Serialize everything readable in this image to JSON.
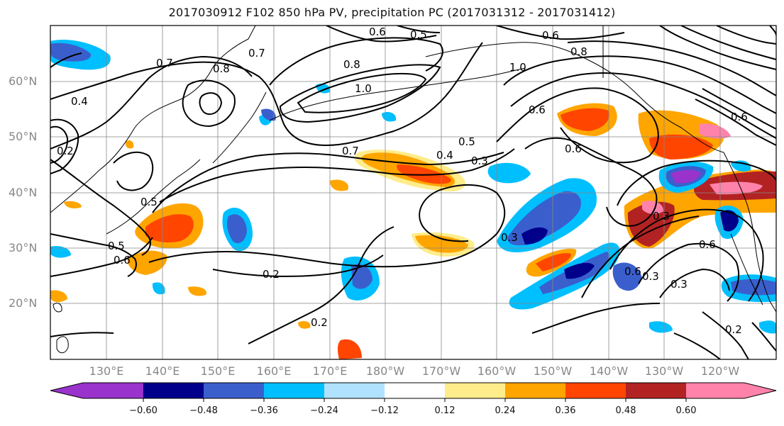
{
  "title": "2017030912 F102 850 hPa PV, precipitation PC (2017031312 - 2017031412)",
  "lat_labels": [
    "60°N",
    "50°N",
    "40°N",
    "30°N",
    "20°N"
  ],
  "lon_labels": [
    "130°E",
    "140°E",
    "150°E",
    "160°E",
    "170°E",
    "180°W",
    "170°W",
    "160°W",
    "150°W",
    "140°W",
    "130°W",
    "120°W"
  ],
  "contour_labels": [
    "0.6",
    "0.5",
    "0.6",
    "0.7",
    "0.8",
    "0.7",
    "0.8",
    "1.0",
    "1.0",
    "0.8",
    "0.6",
    "0.4",
    "0.2",
    "0.7",
    "0.4",
    "0.5",
    "0.3",
    "0.6",
    "0.5",
    "0.5",
    "0.6",
    "0.3",
    "0.2",
    "0.2",
    "0.6",
    "0.3",
    "0.3",
    "0.3",
    "0.6",
    "0.2",
    "0.6"
  ],
  "colorbar": {
    "ticks": [
      "−0.60",
      "−0.48",
      "−0.36",
      "−0.24",
      "−0.12",
      "0.12",
      "0.24",
      "0.36",
      "0.48",
      "0.60"
    ],
    "colors": [
      "#9933cc",
      "#00008b",
      "#3a5fcd",
      "#00bfff",
      "#b0e2ff",
      "#ffffff",
      "#ffec8b",
      "#ffa500",
      "#ff4500",
      "#b22222",
      "#ff82ab"
    ]
  }
}
